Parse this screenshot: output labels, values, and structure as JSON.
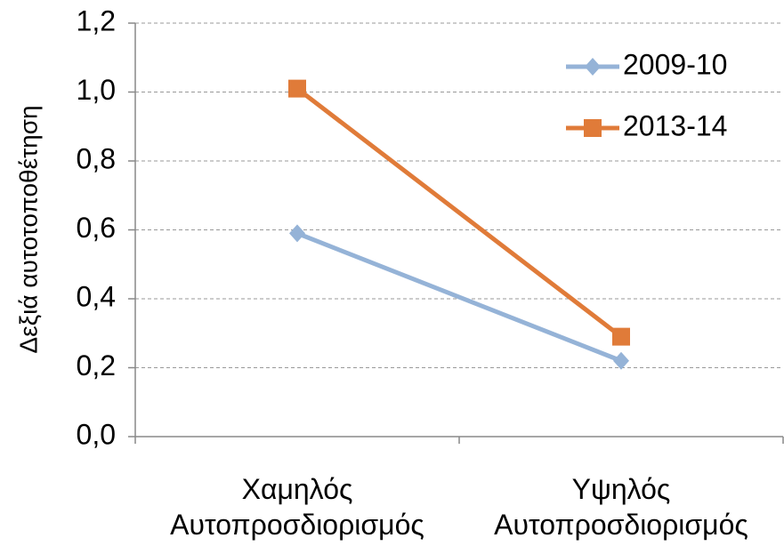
{
  "chart_data": {
    "type": "line",
    "y_label": "Δεξιά αυτοτοποθέτηση",
    "categories": [
      "Χαμηλός Αυτοπροσδιορισμός",
      "Υψηλός Αυτοπροσδιορισμός"
    ],
    "series": [
      {
        "name": "2009-10",
        "color": "#95b3d7",
        "marker": "diamond",
        "values": [
          0.59,
          0.22
        ]
      },
      {
        "name": "2013-14",
        "color": "#e07b39",
        "marker": "square",
        "values": [
          1.01,
          0.29
        ]
      }
    ],
    "ylim": [
      0,
      1.2
    ],
    "yticks": [
      {
        "value": 0,
        "label": "0,0"
      },
      {
        "value": 0.2,
        "label": "0,2"
      },
      {
        "value": 0.4,
        "label": "0,4"
      },
      {
        "value": 0.6,
        "label": "0,6"
      },
      {
        "value": 0.8,
        "label": "0,8"
      },
      {
        "value": 1.0,
        "label": "1,0"
      },
      {
        "value": 1.2,
        "label": "1,2"
      }
    ],
    "grid": true,
    "legend": "top-right"
  }
}
